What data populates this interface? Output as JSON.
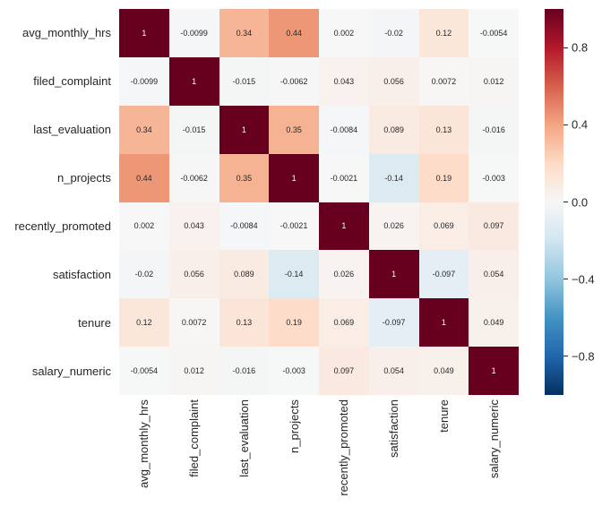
{
  "figure": {
    "background": "#ffffff",
    "text_color": "#262626",
    "annotation_light_color": "#ffffff"
  },
  "chart_data": {
    "type": "heatmap",
    "title": "",
    "x_labels": [
      "avg_monthly_hrs",
      "filed_complaint",
      "last_evaluation",
      "n_projects",
      "recently_promoted",
      "satisfaction",
      "tenure",
      "salary_numeric"
    ],
    "y_labels": [
      "avg_monthly_hrs",
      "filed_complaint",
      "last_evaluation",
      "n_projects",
      "recently_promoted",
      "satisfaction",
      "tenure",
      "salary_numeric"
    ],
    "matrix": [
      [
        1,
        -0.0099,
        0.34,
        0.44,
        0.002,
        -0.02,
        0.12,
        -0.0054
      ],
      [
        -0.0099,
        1,
        -0.015,
        -0.0062,
        0.043,
        0.056,
        0.0072,
        0.012
      ],
      [
        0.34,
        -0.015,
        1,
        0.35,
        -0.0084,
        0.089,
        0.13,
        -0.016
      ],
      [
        0.44,
        -0.0062,
        0.35,
        1,
        -0.0021,
        -0.14,
        0.19,
        -0.003
      ],
      [
        0.002,
        0.043,
        -0.0084,
        -0.0021,
        1,
        0.026,
        0.069,
        0.097
      ],
      [
        -0.02,
        0.056,
        0.089,
        -0.14,
        0.026,
        1,
        -0.097,
        0.054
      ],
      [
        0.12,
        0.0072,
        0.13,
        0.19,
        0.069,
        -0.097,
        1,
        0.049
      ],
      [
        -0.0054,
        0.012,
        -0.016,
        -0.003,
        0.097,
        0.054,
        0.049,
        1
      ]
    ],
    "cell_text": [
      [
        "1",
        "-0.0099",
        "0.34",
        "0.44",
        "0.002",
        "-0.02",
        "0.12",
        "-0.0054"
      ],
      [
        "-0.0099",
        "1",
        "-0.015",
        "-0.0062",
        "0.043",
        "0.056",
        "0.0072",
        "0.012"
      ],
      [
        "0.34",
        "-0.015",
        "1",
        "0.35",
        "-0.0084",
        "0.089",
        "0.13",
        "-0.016"
      ],
      [
        "0.44",
        "-0.0062",
        "0.35",
        "1",
        "-0.0021",
        "-0.14",
        "0.19",
        "-0.003"
      ],
      [
        "0.002",
        "0.043",
        "-0.0084",
        "-0.0021",
        "1",
        "0.026",
        "0.069",
        "0.097"
      ],
      [
        "-0.02",
        "0.056",
        "0.089",
        "-0.14",
        "0.026",
        "1",
        "-0.097",
        "0.054"
      ],
      [
        "0.12",
        "0.0072",
        "0.13",
        "0.19",
        "0.069",
        "-0.097",
        "1",
        "0.049"
      ],
      [
        "-0.0054",
        "0.012",
        "-0.016",
        "-0.003",
        "0.097",
        "0.054",
        "0.049",
        "1"
      ]
    ],
    "vmin": -1,
    "vmax": 1,
    "colormap": "RdBu_r",
    "colormap_stops": [
      [
        -1.0,
        "#053061"
      ],
      [
        -0.8,
        "#2166ac"
      ],
      [
        -0.6,
        "#4393c3"
      ],
      [
        -0.4,
        "#92c5de"
      ],
      [
        -0.2,
        "#d1e5f0"
      ],
      [
        0.0,
        "#f7f7f7"
      ],
      [
        0.2,
        "#fddbc7"
      ],
      [
        0.4,
        "#f4a582"
      ],
      [
        0.6,
        "#d6604d"
      ],
      [
        0.8,
        "#b2182b"
      ],
      [
        1.0,
        "#67001f"
      ]
    ],
    "grid": false,
    "legend_position": "right-colorbar",
    "colorbar": {
      "ticks": [
        {
          "value": 0.8,
          "label": "0.8"
        },
        {
          "value": 0.4,
          "label": "0.4"
        },
        {
          "value": 0.0,
          "label": "0.0"
        },
        {
          "value": -0.4,
          "label": "−0.4"
        },
        {
          "value": -0.8,
          "label": "−0.8"
        }
      ]
    }
  }
}
